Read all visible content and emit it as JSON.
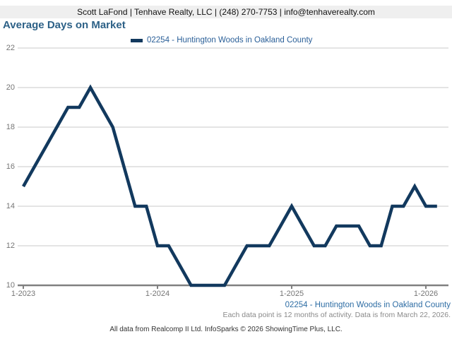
{
  "header": {
    "contact_line": "Scott LaFond | Tenhave Realty, LLC | (248) 270-7753 | info@tenhaverealty.com"
  },
  "title": "Average Days on Market",
  "legend": {
    "series_label": "02254 - Huntington Woods in Oakland County"
  },
  "chart_data": {
    "type": "line",
    "title": "Average Days on Market",
    "series": [
      {
        "name": "02254 - Huntington Woods in Oakland County",
        "values": [
          15,
          16,
          17,
          18,
          19,
          19,
          20,
          19,
          18,
          16,
          14,
          14,
          12,
          12,
          11,
          10,
          10,
          10,
          10,
          11,
          12,
          12,
          12,
          13,
          14,
          13,
          12,
          12,
          13,
          13,
          13,
          12,
          12,
          14,
          14,
          15,
          14,
          14
        ]
      }
    ],
    "x": [
      "1-2023",
      "2-2023",
      "3-2023",
      "4-2023",
      "5-2023",
      "6-2023",
      "7-2023",
      "8-2023",
      "9-2023",
      "10-2023",
      "11-2023",
      "12-2023",
      "1-2024",
      "2-2024",
      "3-2024",
      "4-2024",
      "5-2024",
      "6-2024",
      "7-2024",
      "8-2024",
      "9-2024",
      "10-2024",
      "11-2024",
      "12-2024",
      "1-2025",
      "2-2025",
      "3-2025",
      "4-2025",
      "5-2025",
      "6-2025",
      "7-2025",
      "8-2025",
      "9-2025",
      "10-2025",
      "11-2025",
      "12-2025",
      "1-2026",
      "2-2026"
    ],
    "xtick_labels": [
      "1-2023",
      "1-2024",
      "1-2025",
      "1-2026"
    ],
    "ytick_labels": [
      "22",
      "20",
      "18",
      "16",
      "14",
      "12",
      "10"
    ],
    "ylim": [
      10,
      22
    ],
    "grid": true,
    "legend_position": "top",
    "line_color": "#12395e",
    "grid_color": "#c9c9c9",
    "axis_color": "#808080"
  },
  "footnotes": {
    "series_line": "02254 - Huntington Woods in Oakland County",
    "data_note": "Each data point is 12 months of activity. Data is from March 22, 2026.",
    "attribution": "All data from Realcomp II Ltd. InfoSparks © 2026 ShowingTime Plus, LLC."
  }
}
